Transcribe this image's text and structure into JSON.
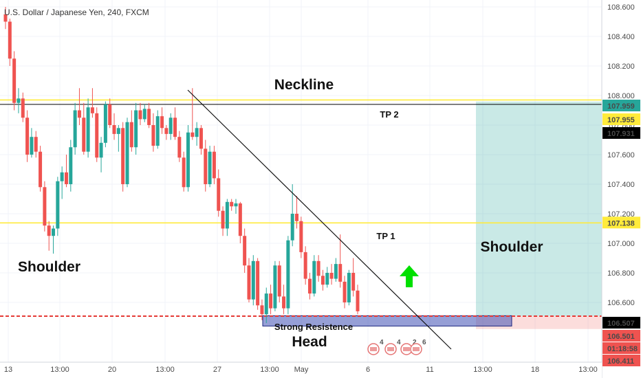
{
  "chart_data": {
    "type": "candlestick",
    "title": "U.S. Dollar / Japanese Yen, 240, FXCM",
    "x_ticks": [
      "13",
      "13:00",
      "20",
      "13:00",
      "27",
      "13:00",
      "May",
      "6",
      "11",
      "13:00",
      "18",
      "13:00"
    ],
    "y_ticks": [
      "108.600",
      "108.400",
      "108.200",
      "108.000",
      "107.800",
      "107.600",
      "107.400",
      "107.200",
      "107.000",
      "106.800",
      "106.600"
    ],
    "ylim": [
      106.4,
      108.62
    ],
    "grid": true,
    "colors": {
      "up": "#26a69a",
      "down": "#ef5350",
      "yellow": "#ffeb3b",
      "red": "#e53935"
    },
    "candles": [
      {
        "o": 108.55,
        "h": 108.6,
        "l": 108.45,
        "c": 108.5
      },
      {
        "o": 108.5,
        "h": 108.52,
        "l": 108.2,
        "c": 108.25
      },
      {
        "o": 108.25,
        "h": 108.3,
        "l": 107.9,
        "c": 107.95
      },
      {
        "o": 107.95,
        "h": 108.05,
        "l": 107.88,
        "c": 107.98
      },
      {
        "o": 107.98,
        "h": 108.02,
        "l": 107.82,
        "c": 107.85
      },
      {
        "o": 107.85,
        "h": 107.9,
        "l": 107.55,
        "c": 107.6
      },
      {
        "o": 107.6,
        "h": 107.78,
        "l": 107.58,
        "c": 107.72
      },
      {
        "o": 107.72,
        "h": 107.76,
        "l": 107.58,
        "c": 107.62
      },
      {
        "o": 107.62,
        "h": 107.66,
        "l": 107.35,
        "c": 107.38
      },
      {
        "o": 107.38,
        "h": 107.42,
        "l": 107.08,
        "c": 107.12
      },
      {
        "o": 107.12,
        "h": 107.15,
        "l": 106.95,
        "c": 107.05
      },
      {
        "o": 107.05,
        "h": 107.12,
        "l": 106.93,
        "c": 107.1
      },
      {
        "o": 107.1,
        "h": 107.45,
        "l": 107.05,
        "c": 107.42
      },
      {
        "o": 107.42,
        "h": 107.52,
        "l": 107.3,
        "c": 107.48
      },
      {
        "o": 107.48,
        "h": 107.6,
        "l": 107.38,
        "c": 107.4
      },
      {
        "o": 107.4,
        "h": 107.7,
        "l": 107.35,
        "c": 107.65
      },
      {
        "o": 107.65,
        "h": 107.95,
        "l": 107.6,
        "c": 107.9
      },
      {
        "o": 107.9,
        "h": 108.05,
        "l": 107.8,
        "c": 107.85
      },
      {
        "o": 107.85,
        "h": 107.95,
        "l": 107.6,
        "c": 107.62
      },
      {
        "o": 107.62,
        "h": 107.98,
        "l": 107.58,
        "c": 107.92
      },
      {
        "o": 107.92,
        "h": 108.05,
        "l": 107.85,
        "c": 107.88
      },
      {
        "o": 107.88,
        "h": 107.92,
        "l": 107.55,
        "c": 107.58
      },
      {
        "o": 107.58,
        "h": 107.72,
        "l": 107.48,
        "c": 107.68
      },
      {
        "o": 107.68,
        "h": 107.96,
        "l": 107.65,
        "c": 107.94
      },
      {
        "o": 107.94,
        "h": 107.98,
        "l": 107.78,
        "c": 107.8
      },
      {
        "o": 107.8,
        "h": 107.88,
        "l": 107.7,
        "c": 107.74
      },
      {
        "o": 107.74,
        "h": 107.8,
        "l": 107.62,
        "c": 107.78
      },
      {
        "o": 107.78,
        "h": 107.82,
        "l": 107.35,
        "c": 107.4
      },
      {
        "o": 107.4,
        "h": 107.85,
        "l": 107.38,
        "c": 107.82
      },
      {
        "o": 107.82,
        "h": 107.9,
        "l": 107.62,
        "c": 107.65
      },
      {
        "o": 107.65,
        "h": 107.95,
        "l": 107.6,
        "c": 107.9
      },
      {
        "o": 107.9,
        "h": 107.95,
        "l": 107.8,
        "c": 107.84
      },
      {
        "o": 107.84,
        "h": 107.94,
        "l": 107.82,
        "c": 107.91
      },
      {
        "o": 107.91,
        "h": 107.95,
        "l": 107.78,
        "c": 107.8
      },
      {
        "o": 107.8,
        "h": 107.88,
        "l": 107.62,
        "c": 107.66
      },
      {
        "o": 107.66,
        "h": 107.9,
        "l": 107.64,
        "c": 107.86
      },
      {
        "o": 107.86,
        "h": 107.92,
        "l": 107.74,
        "c": 107.78
      },
      {
        "o": 107.78,
        "h": 107.8,
        "l": 107.7,
        "c": 107.74
      },
      {
        "o": 107.74,
        "h": 107.88,
        "l": 107.7,
        "c": 107.85
      },
      {
        "o": 107.85,
        "h": 107.92,
        "l": 107.7,
        "c": 107.72
      },
      {
        "o": 107.72,
        "h": 107.76,
        "l": 107.55,
        "c": 107.58
      },
      {
        "o": 107.58,
        "h": 107.62,
        "l": 107.35,
        "c": 107.38
      },
      {
        "o": 107.38,
        "h": 107.8,
        "l": 107.35,
        "c": 107.75
      },
      {
        "o": 107.75,
        "h": 108.05,
        "l": 107.7,
        "c": 107.72
      },
      {
        "o": 107.72,
        "h": 107.82,
        "l": 107.66,
        "c": 107.78
      },
      {
        "o": 107.78,
        "h": 107.8,
        "l": 107.6,
        "c": 107.64
      },
      {
        "o": 107.64,
        "h": 107.7,
        "l": 107.35,
        "c": 107.4
      },
      {
        "o": 107.4,
        "h": 107.66,
        "l": 107.38,
        "c": 107.62
      },
      {
        "o": 107.62,
        "h": 107.66,
        "l": 107.4,
        "c": 107.44
      },
      {
        "o": 107.44,
        "h": 107.5,
        "l": 107.18,
        "c": 107.22
      },
      {
        "o": 107.22,
        "h": 107.25,
        "l": 107.05,
        "c": 107.1
      },
      {
        "o": 107.1,
        "h": 107.3,
        "l": 107.05,
        "c": 107.28
      },
      {
        "o": 107.28,
        "h": 107.3,
        "l": 107.22,
        "c": 107.25
      },
      {
        "o": 107.25,
        "h": 107.3,
        "l": 107.2,
        "c": 107.27
      },
      {
        "o": 107.27,
        "h": 107.28,
        "l": 107.0,
        "c": 107.05
      },
      {
        "o": 107.05,
        "h": 107.1,
        "l": 106.8,
        "c": 106.85
      },
      {
        "o": 106.85,
        "h": 106.9,
        "l": 106.6,
        "c": 106.62
      },
      {
        "o": 106.62,
        "h": 106.92,
        "l": 106.58,
        "c": 106.88
      },
      {
        "o": 106.88,
        "h": 106.9,
        "l": 106.55,
        "c": 106.58
      },
      {
        "o": 106.58,
        "h": 106.62,
        "l": 106.48,
        "c": 106.52
      },
      {
        "o": 106.52,
        "h": 106.7,
        "l": 106.46,
        "c": 106.66
      },
      {
        "o": 106.66,
        "h": 106.72,
        "l": 106.52,
        "c": 106.56
      },
      {
        "o": 106.56,
        "h": 106.88,
        "l": 106.54,
        "c": 106.85
      },
      {
        "o": 106.85,
        "h": 106.88,
        "l": 106.6,
        "c": 106.64
      },
      {
        "o": 106.64,
        "h": 106.72,
        "l": 106.52,
        "c": 106.56
      },
      {
        "o": 106.56,
        "h": 107.05,
        "l": 106.52,
        "c": 107.02
      },
      {
        "o": 107.02,
        "h": 107.4,
        "l": 106.98,
        "c": 107.2
      },
      {
        "o": 107.2,
        "h": 107.32,
        "l": 107.1,
        "c": 107.15
      },
      {
        "o": 107.15,
        "h": 107.18,
        "l": 106.9,
        "c": 106.94
      },
      {
        "o": 106.94,
        "h": 106.98,
        "l": 106.72,
        "c": 106.76
      },
      {
        "o": 106.76,
        "h": 106.8,
        "l": 106.62,
        "c": 106.66
      },
      {
        "o": 106.66,
        "h": 106.92,
        "l": 106.64,
        "c": 106.88
      },
      {
        "o": 106.88,
        "h": 106.92,
        "l": 106.74,
        "c": 106.78
      },
      {
        "o": 106.78,
        "h": 106.82,
        "l": 106.68,
        "c": 106.72
      },
      {
        "o": 106.72,
        "h": 106.84,
        "l": 106.7,
        "c": 106.8
      },
      {
        "o": 106.8,
        "h": 106.86,
        "l": 106.72,
        "c": 106.76
      },
      {
        "o": 106.76,
        "h": 106.9,
        "l": 106.74,
        "c": 106.86
      },
      {
        "o": 106.86,
        "h": 107.06,
        "l": 106.7,
        "c": 106.74
      },
      {
        "o": 106.74,
        "h": 106.78,
        "l": 106.56,
        "c": 106.6
      },
      {
        "o": 106.6,
        "h": 106.82,
        "l": 106.58,
        "c": 106.8
      },
      {
        "o": 106.8,
        "h": 106.9,
        "l": 106.64,
        "c": 106.68
      },
      {
        "o": 106.68,
        "h": 106.72,
        "l": 106.52,
        "c": 106.54
      }
    ],
    "levels": [
      {
        "name": "neckline",
        "price": 107.959
      },
      {
        "name": "tp2",
        "price": 107.955
      },
      {
        "name": "tp1",
        "price": 107.138
      },
      {
        "name": "support",
        "price": 106.507
      }
    ],
    "price_labels": [
      {
        "text": "107.959",
        "price": 107.959,
        "bg": "#26a69a",
        "fg": "#ffffff"
      },
      {
        "text": "107.955",
        "price": 107.955,
        "bg": "#ffeb3b",
        "fg": "#000000"
      },
      {
        "text": "107.931",
        "price": 107.931,
        "bg": "#000000",
        "fg": "#ffffff"
      },
      {
        "text": "107.138",
        "price": 107.138,
        "bg": "#ffeb3b",
        "fg": "#000000"
      },
      {
        "text": "106.507",
        "price": 106.507,
        "bg": "#000000",
        "fg": "#ffffff"
      },
      {
        "text": "106.501",
        "price": 106.501,
        "bg": "#ef5350",
        "fg": "#ffffff"
      },
      {
        "text": "01:18:58",
        "price": 106.42,
        "bg": "#ef5350",
        "fg": "#ffffff"
      },
      {
        "text": "106.411",
        "price": 106.411,
        "bg": "#ef5350",
        "fg": "#ffffff"
      }
    ],
    "annotations": {
      "neckline": "Neckline",
      "tp2": "TP 2",
      "tp1": "TP 1",
      "shoulder_left": "Shoulder",
      "shoulder_right": "Shoulder",
      "head": "Head",
      "strong_resistance": "Strong Resistence"
    },
    "events": [
      "4",
      "4",
      "2",
      "6"
    ]
  }
}
